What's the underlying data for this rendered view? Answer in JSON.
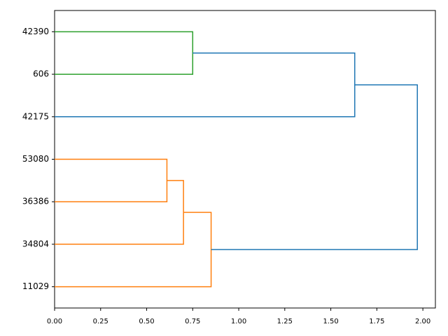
{
  "chart_data": {
    "type": "dendrogram",
    "leaves": [
      "42390",
      "606",
      "42175",
      "53080",
      "36386",
      "34804",
      "11029"
    ],
    "links": [
      {
        "children": [
          0,
          1
        ],
        "height": 0.75,
        "color": "#2ca02c"
      },
      {
        "children": [
          7,
          2
        ],
        "height": 1.63,
        "color": "#1f77b4"
      },
      {
        "children": [
          3,
          4
        ],
        "height": 0.61,
        "color": "#ff7f0e"
      },
      {
        "children": [
          9,
          5
        ],
        "height": 0.7,
        "color": "#ff7f0e"
      },
      {
        "children": [
          10,
          6
        ],
        "height": 0.85,
        "color": "#ff7f0e"
      },
      {
        "children": [
          8,
          11
        ],
        "height": 1.97,
        "color": "#1f77b4"
      }
    ],
    "xlim": [
      0,
      2.068
    ],
    "xticks": [
      {
        "value": 0,
        "label": "0.00"
      },
      {
        "value": 0.25,
        "label": "0.25"
      },
      {
        "value": 0.5,
        "label": "0.50"
      },
      {
        "value": 0.75,
        "label": "0.75"
      },
      {
        "value": 1,
        "label": "1.00"
      },
      {
        "value": 1.25,
        "label": "1.25"
      },
      {
        "value": 1.5,
        "label": "1.50"
      },
      {
        "value": 1.75,
        "label": "1.75"
      },
      {
        "value": 2,
        "label": "2.00"
      }
    ]
  }
}
